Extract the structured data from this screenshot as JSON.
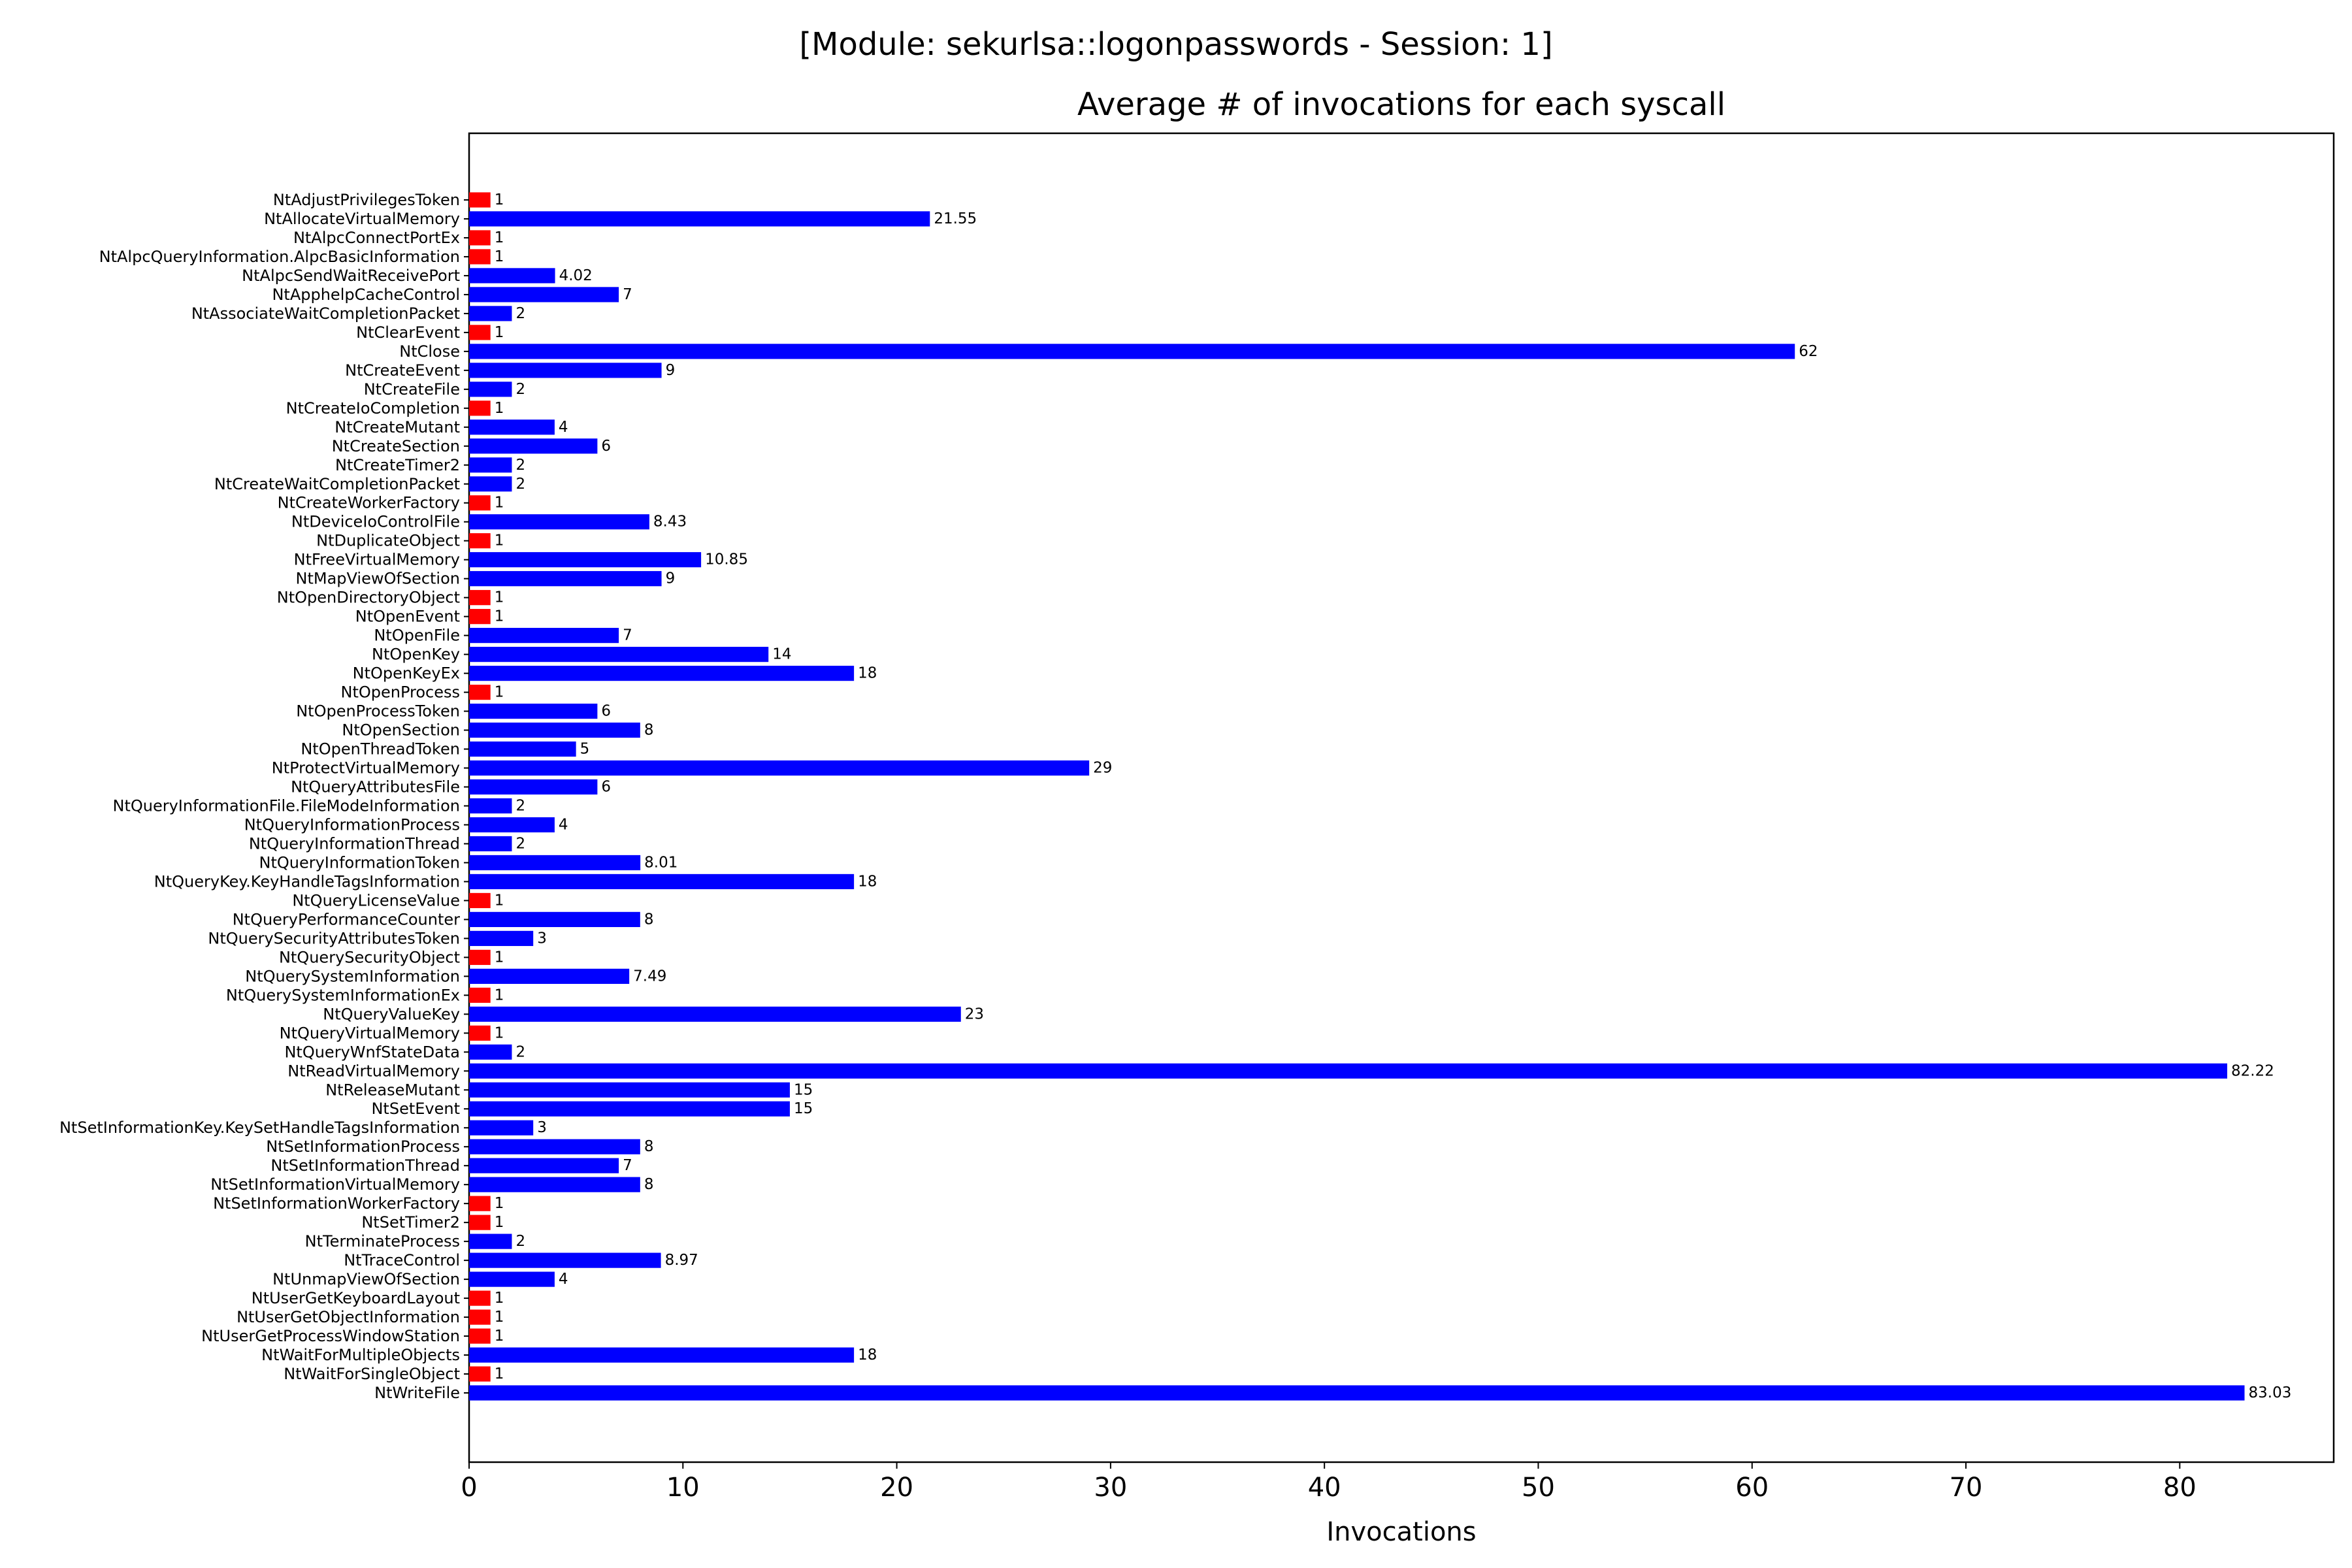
{
  "suptitle": "[Module: sekurlsa::logonpasswords - Session: 1]",
  "chart_data": {
    "type": "bar",
    "orientation": "horizontal",
    "title": "Average # of invocations for each syscall",
    "xlabel": "Invocations",
    "ylabel": "",
    "xlim": [
      0,
      87.2
    ],
    "xticks": [
      0,
      10,
      20,
      30,
      40,
      50,
      60,
      70,
      80
    ],
    "grid": false,
    "colors": {
      "default": "#0000ff",
      "single_invocation": "#ff0000"
    },
    "categories": [
      "NtAdjustPrivilegesToken",
      "NtAllocateVirtualMemory",
      "NtAlpcConnectPortEx",
      "NtAlpcQueryInformation.AlpcBasicInformation",
      "NtAlpcSendWaitReceivePort",
      "NtApphelpCacheControl",
      "NtAssociateWaitCompletionPacket",
      "NtClearEvent",
      "NtClose",
      "NtCreateEvent",
      "NtCreateFile",
      "NtCreateIoCompletion",
      "NtCreateMutant",
      "NtCreateSection",
      "NtCreateTimer2",
      "NtCreateWaitCompletionPacket",
      "NtCreateWorkerFactory",
      "NtDeviceIoControlFile",
      "NtDuplicateObject",
      "NtFreeVirtualMemory",
      "NtMapViewOfSection",
      "NtOpenDirectoryObject",
      "NtOpenEvent",
      "NtOpenFile",
      "NtOpenKey",
      "NtOpenKeyEx",
      "NtOpenProcess",
      "NtOpenProcessToken",
      "NtOpenSection",
      "NtOpenThreadToken",
      "NtProtectVirtualMemory",
      "NtQueryAttributesFile",
      "NtQueryInformationFile.FileModeInformation",
      "NtQueryInformationProcess",
      "NtQueryInformationThread",
      "NtQueryInformationToken",
      "NtQueryKey.KeyHandleTagsInformation",
      "NtQueryLicenseValue",
      "NtQueryPerformanceCounter",
      "NtQuerySecurityAttributesToken",
      "NtQuerySecurityObject",
      "NtQuerySystemInformation",
      "NtQuerySystemInformationEx",
      "NtQueryValueKey",
      "NtQueryVirtualMemory",
      "NtQueryWnfStateData",
      "NtReadVirtualMemory",
      "NtReleaseMutant",
      "NtSetEvent",
      "NtSetInformationKey.KeySetHandleTagsInformation",
      "NtSetInformationProcess",
      "NtSetInformationThread",
      "NtSetInformationVirtualMemory",
      "NtSetInformationWorkerFactory",
      "NtSetTimer2",
      "NtTerminateProcess",
      "NtTraceControl",
      "NtUnmapViewOfSection",
      "NtUserGetKeyboardLayout",
      "NtUserGetObjectInformation",
      "NtUserGetProcessWindowStation",
      "NtWaitForMultipleObjects",
      "NtWaitForSingleObject",
      "NtWriteFile"
    ],
    "values": [
      1,
      21.55,
      1,
      1,
      4.02,
      7,
      2,
      1,
      62,
      9,
      2,
      1,
      4,
      6,
      2,
      2,
      1,
      8.43,
      1,
      10.85,
      9,
      1,
      1,
      7,
      14,
      18,
      1,
      6,
      8,
      5,
      29,
      6,
      2,
      4,
      2,
      8.01,
      18,
      1,
      8,
      3,
      1,
      7.49,
      1,
      23,
      1,
      2,
      82.22,
      15,
      15,
      3,
      8,
      7,
      8,
      1,
      1,
      2,
      8.97,
      4,
      1,
      1,
      1,
      18,
      1,
      83.03
    ]
  }
}
